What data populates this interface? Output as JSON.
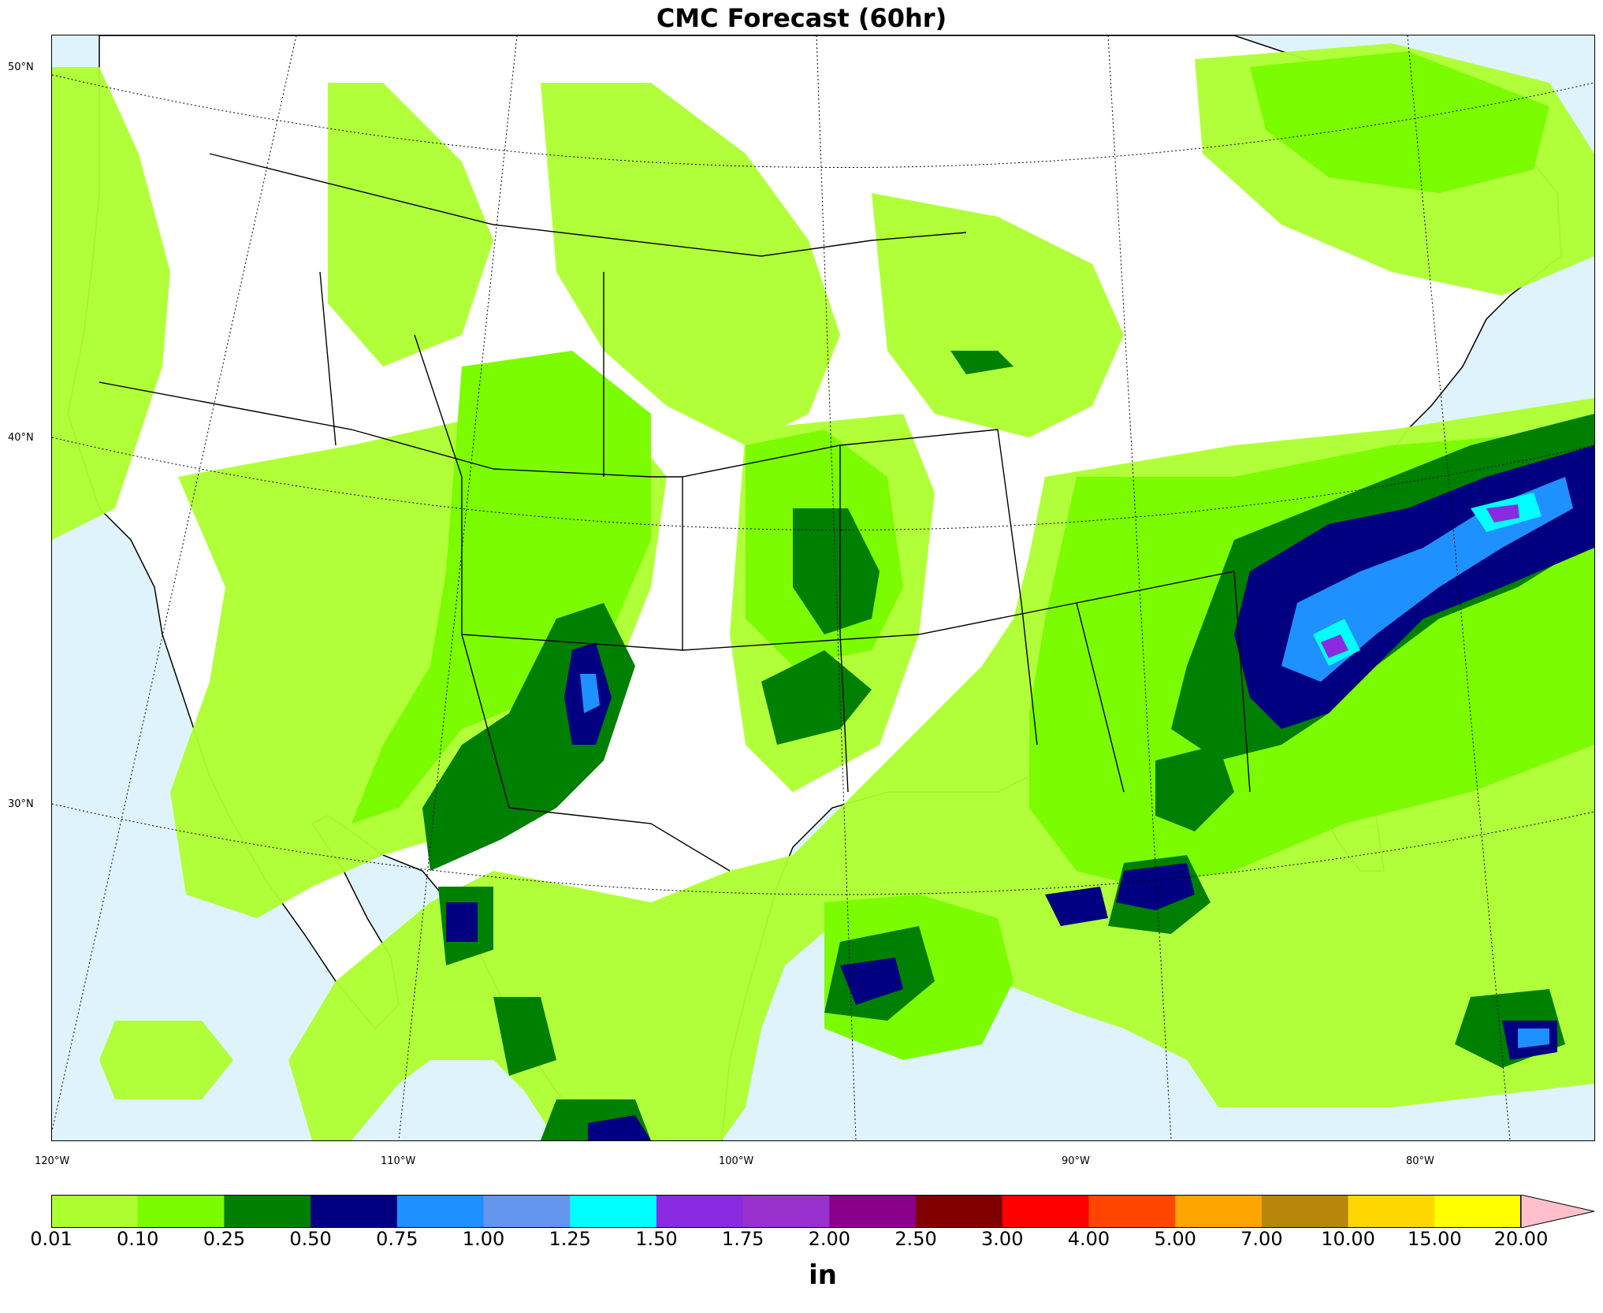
{
  "title": "CMC Forecast (60hr)",
  "lat_labels": [
    "50°N",
    "40°N",
    "30°N"
  ],
  "lon_labels": [
    "120°W",
    "110°W",
    "100°W",
    "90°W",
    "80°W"
  ],
  "colorbar": {
    "unit": "in",
    "ticks": [
      "0.01",
      "0.10",
      "0.25",
      "0.50",
      "0.75",
      "1.00",
      "1.25",
      "1.50",
      "1.75",
      "2.00",
      "2.50",
      "3.00",
      "4.00",
      "5.00",
      "7.00",
      "10.00",
      "15.00",
      "20.00"
    ],
    "colors": [
      "#adff2f",
      "#7cfc00",
      "#008000",
      "#000080",
      "#1e90ff",
      "#6495ed",
      "#00ffff",
      "#8a2be2",
      "#9932cc",
      "#8b008b",
      "#800000",
      "#ff0000",
      "#ff4500",
      "#ffa500",
      "#b8860b",
      "#ffd700",
      "#ffff00"
    ],
    "extend_color": "#ffc0cb"
  },
  "colors": {
    "water": "#dff3fc",
    "land": "#ffffff"
  }
}
